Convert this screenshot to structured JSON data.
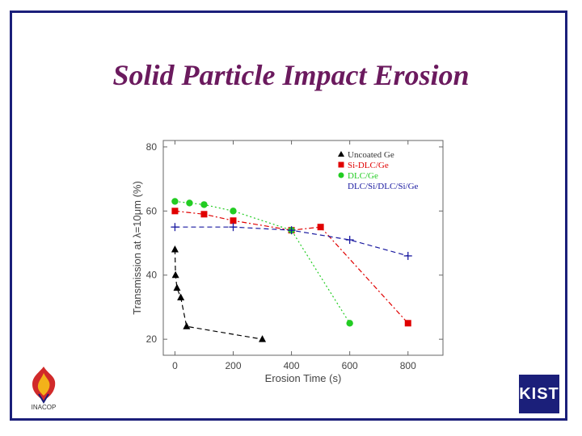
{
  "slide": {
    "title": "Solid Particle Impact Erosion"
  },
  "logos": {
    "left_text": "INACOP",
    "right_text": "KIST"
  },
  "colors": {
    "frame": "#1b1f7a",
    "title": "#6b1a5e",
    "uncoated": "#000000",
    "si_dlc": "#e00000",
    "dlc": "#22cc22",
    "multilayer": "#1a1aa0"
  },
  "chart_data": {
    "type": "scatter",
    "xlabel": "Erosion Time (s)",
    "ylabel": "Transmission at λ=10μm (%)",
    "xlim": [
      -40,
      920
    ],
    "ylim": [
      15,
      82
    ],
    "xticks": [
      0,
      200,
      400,
      600,
      800
    ],
    "yticks": [
      20,
      40,
      60,
      80
    ],
    "grid": false,
    "legend_position": "top-right",
    "series": [
      {
        "name": "Uncoated Ge",
        "color": "#000000",
        "marker": "triangle",
        "line": "dashed",
        "points": [
          [
            0,
            48
          ],
          [
            2,
            40
          ],
          [
            7,
            36
          ],
          [
            20,
            33
          ],
          [
            40,
            24
          ],
          [
            300,
            20
          ]
        ]
      },
      {
        "name": "Si-DLC/Ge",
        "color": "#e00000",
        "marker": "square",
        "line": "dash-dot",
        "points": [
          [
            0,
            60
          ],
          [
            100,
            59
          ],
          [
            200,
            57
          ],
          [
            400,
            54
          ],
          [
            500,
            55
          ],
          [
            800,
            25
          ]
        ]
      },
      {
        "name": "DLC/Ge",
        "color": "#22cc22",
        "marker": "circle",
        "line": "dotted",
        "points": [
          [
            0,
            63
          ],
          [
            50,
            62.5
          ],
          [
            100,
            62
          ],
          [
            200,
            60
          ],
          [
            400,
            54
          ],
          [
            600,
            25
          ]
        ]
      },
      {
        "name": "DLC/Si/DLC/Si/Ge",
        "color": "#1a1aa0",
        "marker": "plus",
        "line": "dashed",
        "points": [
          [
            0,
            55
          ],
          [
            200,
            55
          ],
          [
            400,
            54
          ],
          [
            600,
            51
          ],
          [
            800,
            46
          ]
        ]
      }
    ]
  }
}
